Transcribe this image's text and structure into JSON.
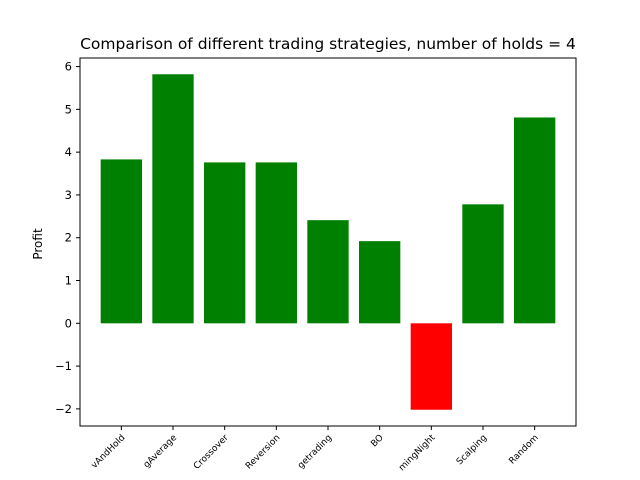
{
  "chart_data": {
    "type": "bar",
    "title": "Comparison of different trading strategies, number of holds = 4",
    "xlabel": "",
    "ylabel": "Profit",
    "categories": [
      "BuyAndHold",
      "MovingAverage",
      "Crossover",
      "MeanReversion",
      "Arbitragetrading",
      "BO",
      "TradingNight",
      "Scalping",
      "Random"
    ],
    "category_labels_visible": [
      "vAndHold",
      "gAverage",
      "Crossover",
      "Reversion",
      "getrading",
      "BO",
      "mingNight",
      "Scalping",
      "Random"
    ],
    "values": [
      3.83,
      5.82,
      3.76,
      3.76,
      2.41,
      1.92,
      -2.02,
      2.78,
      4.81
    ],
    "colors": [
      "#008000",
      "#008000",
      "#008000",
      "#008000",
      "#008000",
      "#008000",
      "#ff0000",
      "#008000",
      "#008000"
    ],
    "ylim": [
      -2.4,
      6.2
    ],
    "yticks": [
      -2,
      -1,
      0,
      1,
      2,
      3,
      4,
      5,
      6
    ],
    "ytick_labels": [
      "−2",
      "−1",
      "0",
      "1",
      "2",
      "3",
      "4",
      "5",
      "6"
    ],
    "grid": false,
    "legend": "none"
  }
}
